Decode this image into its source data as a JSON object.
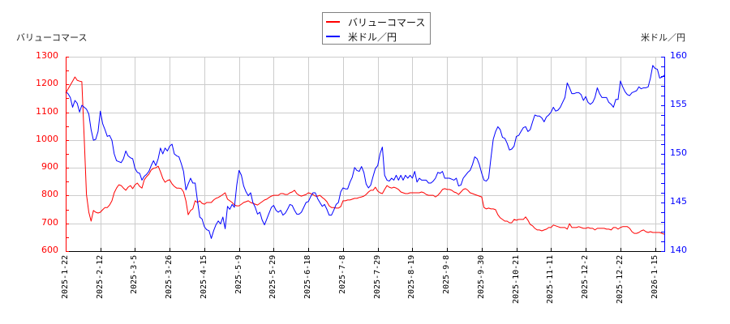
{
  "legend": {
    "items": [
      {
        "label": "バリューコマース",
        "color": "#ff0000"
      },
      {
        "label": "米ドル／円",
        "color": "#0000ff"
      }
    ]
  },
  "axes": {
    "left_title": "バリューコマース",
    "right_title": "米ドル／円"
  },
  "colors": {
    "grid": "#cccccc",
    "x_axis": "#000000",
    "left_axis": "#ff0000",
    "right_axis": "#0000ff"
  },
  "chart_data": {
    "type": "line",
    "title": "",
    "xlabel": "",
    "ylabel": "バリューコマース",
    "ylabel_right": "米ドル／円",
    "grid": true,
    "legend_position": "top-center",
    "x_index_range": [
      0,
      259
    ],
    "x_ticks": [
      {
        "index": 0,
        "label": "2025-1-22"
      },
      {
        "index": 15,
        "label": "2025-2-12"
      },
      {
        "index": 30,
        "label": "2025-3-5"
      },
      {
        "index": 45,
        "label": "2025-3-26"
      },
      {
        "index": 60,
        "label": "2025-4-15"
      },
      {
        "index": 75,
        "label": "2025-5-9"
      },
      {
        "index": 90,
        "label": "2025-5-29"
      },
      {
        "index": 105,
        "label": "2025-6-18"
      },
      {
        "index": 120,
        "label": "2025-7-8"
      },
      {
        "index": 135,
        "label": "2025-7-29"
      },
      {
        "index": 150,
        "label": "2025-8-19"
      },
      {
        "index": 165,
        "label": "2025-9-8"
      },
      {
        "index": 180,
        "label": "2025-9-30"
      },
      {
        "index": 195,
        "label": "2025-10-21"
      },
      {
        "index": 210,
        "label": "2025-11-11"
      },
      {
        "index": 225,
        "label": "2025-12-2"
      },
      {
        "index": 240,
        "label": "2025-12-22"
      },
      {
        "index": 255,
        "label": "2026-1-15"
      }
    ],
    "y_left": {
      "label": "バリューコマース",
      "range": [
        600,
        1300
      ],
      "ticks": [
        600,
        700,
        800,
        900,
        1000,
        1100,
        1200,
        1300
      ],
      "minor_step": 50
    },
    "y_right": {
      "label": "米ドル／円",
      "range": [
        140,
        160
      ],
      "ticks": [
        140,
        145,
        150,
        155,
        160
      ],
      "minor_step": 1
    },
    "series": [
      {
        "name": "バリューコマース",
        "axis": "left",
        "color": "#ff0000",
        "values": [
          1169,
          1183,
          1198,
          1212,
          1227,
          1215,
          1212,
          1210,
          1008,
          804,
          740,
          708,
          746,
          740,
          737,
          740,
          749,
          757,
          757,
          766,
          781,
          810,
          827,
          839,
          836,
          827,
          819,
          830,
          836,
          825,
          839,
          845,
          833,
          827,
          857,
          868,
          877,
          892,
          898,
          900,
          906,
          886,
          862,
          848,
          854,
          857,
          842,
          833,
          827,
          827,
          825,
          813,
          781,
          731,
          746,
          752,
          781,
          775,
          781,
          772,
          769,
          775,
          775,
          775,
          784,
          790,
          793,
          798,
          804,
          810,
          787,
          781,
          775,
          766,
          763,
          763,
          769,
          775,
          778,
          781,
          775,
          772,
          769,
          766,
          772,
          778,
          784,
          787,
          793,
          798,
          801,
          801,
          801,
          807,
          807,
          804,
          804,
          810,
          813,
          819,
          807,
          801,
          798,
          801,
          804,
          810,
          807,
          804,
          798,
          798,
          801,
          793,
          787,
          778,
          763,
          757,
          757,
          755,
          755,
          760,
          781,
          781,
          784,
          784,
          787,
          790,
          790,
          793,
          795,
          798,
          804,
          813,
          819,
          819,
          830,
          816,
          810,
          807,
          822,
          836,
          830,
          827,
          830,
          827,
          822,
          813,
          810,
          807,
          807,
          810,
          810,
          810,
          810,
          810,
          813,
          810,
          804,
          801,
          801,
          801,
          795,
          801,
          810,
          822,
          825,
          822,
          822,
          819,
          813,
          810,
          804,
          813,
          822,
          825,
          819,
          810,
          807,
          804,
          801,
          798,
          795,
          757,
          752,
          755,
          752,
          752,
          749,
          731,
          720,
          714,
          708,
          708,
          702,
          702,
          714,
          711,
          714,
          714,
          714,
          723,
          711,
          696,
          691,
          682,
          676,
          676,
          673,
          676,
          679,
          685,
          685,
          694,
          691,
          688,
          685,
          685,
          685,
          679,
          699,
          685,
          685,
          685,
          688,
          685,
          682,
          682,
          685,
          682,
          682,
          676,
          682,
          682,
          682,
          682,
          679,
          679,
          676,
          685,
          685,
          679,
          685,
          688,
          688,
          688,
          682,
          670,
          664,
          664,
          667,
          673,
          676,
          670,
          667,
          670,
          667,
          667,
          667,
          667,
          664,
          661
        ]
      },
      {
        "name": "米ドル／円",
        "axis": "right",
        "color": "#0000ff",
        "values": [
          156.4,
          156.2,
          155.8,
          154.8,
          155.5,
          155.2,
          154.3,
          155.0,
          154.8,
          154.6,
          154.1,
          152.5,
          151.4,
          151.5,
          152.3,
          154.4,
          153.1,
          152.5,
          151.8,
          151.9,
          151.4,
          150.0,
          149.3,
          149.2,
          149.1,
          149.5,
          150.3,
          149.8,
          149.6,
          149.5,
          148.5,
          148.1,
          148.0,
          147.3,
          147.7,
          147.9,
          148.2,
          148.8,
          149.3,
          148.8,
          149.5,
          150.6,
          150.0,
          150.6,
          150.3,
          150.8,
          151.0,
          150.0,
          149.8,
          149.7,
          149.0,
          148.2,
          146.3,
          146.9,
          147.5,
          147.0,
          147.0,
          145.2,
          143.5,
          143.3,
          142.5,
          142.2,
          142.1,
          141.3,
          142.1,
          142.7,
          143.1,
          142.8,
          143.5,
          142.3,
          144.6,
          144.3,
          144.8,
          144.5,
          146.8,
          148.3,
          147.8,
          146.7,
          146.1,
          145.7,
          146.0,
          145.0,
          144.5,
          143.8,
          144.0,
          143.2,
          142.7,
          143.3,
          143.9,
          144.5,
          144.7,
          144.2,
          144.0,
          144.2,
          143.7,
          143.9,
          144.3,
          144.8,
          144.7,
          144.2,
          143.8,
          143.8,
          144.0,
          144.5,
          145.0,
          145.1,
          145.6,
          146.0,
          146.0,
          145.4,
          145.0,
          144.6,
          144.8,
          144.3,
          143.7,
          143.7,
          144.2,
          144.8,
          145.0,
          146.1,
          146.5,
          146.4,
          146.4,
          147.1,
          147.6,
          148.6,
          148.3,
          148.2,
          148.7,
          148.1,
          146.9,
          146.5,
          146.8,
          147.7,
          148.5,
          148.8,
          150.0,
          150.7,
          147.8,
          147.3,
          147.2,
          147.5,
          147.3,
          147.8,
          147.3,
          147.8,
          147.3,
          147.8,
          147.5,
          147.8,
          147.5,
          148.2,
          147.1,
          147.5,
          147.3,
          147.3,
          147.3,
          147.0,
          147.0,
          147.2,
          147.5,
          148.1,
          148.0,
          148.2,
          147.5,
          147.5,
          147.5,
          147.4,
          147.3,
          147.5,
          146.7,
          146.8,
          147.5,
          147.8,
          148.1,
          148.3,
          148.9,
          149.7,
          149.5,
          148.9,
          148.0,
          147.3,
          147.2,
          147.5,
          149.6,
          151.5,
          152.3,
          152.8,
          152.5,
          151.7,
          151.6,
          151.1,
          150.4,
          150.5,
          150.8,
          151.8,
          151.9,
          152.3,
          152.7,
          152.8,
          152.3,
          152.5,
          153.3,
          154.0,
          153.9,
          153.9,
          153.7,
          153.3,
          153.8,
          154.0,
          154.3,
          154.8,
          154.4,
          154.5,
          154.8,
          155.3,
          155.8,
          157.3,
          156.8,
          156.2,
          156.2,
          156.3,
          156.3,
          156.1,
          155.5,
          155.9,
          155.3,
          155.1,
          155.3,
          155.8,
          156.8,
          156.2,
          155.8,
          155.8,
          155.8,
          155.3,
          155.1,
          154.8,
          155.6,
          155.6,
          157.5,
          156.9,
          156.4,
          156.1,
          156.0,
          156.3,
          156.4,
          156.5,
          156.9,
          156.7,
          156.8,
          156.8,
          156.9,
          157.8,
          159.1,
          158.8,
          158.7,
          157.8,
          157.9,
          158.1
        ]
      }
    ]
  }
}
